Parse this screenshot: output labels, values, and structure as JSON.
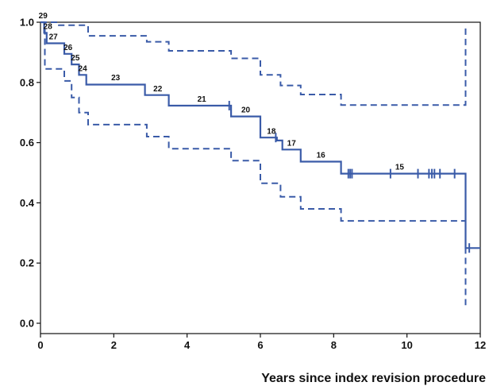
{
  "chart_data": {
    "type": "line",
    "title": "",
    "xlabel": "Years since index revision procedure",
    "ylabel": "",
    "xlim": [
      0,
      12
    ],
    "ylim": [
      0,
      1
    ],
    "x_ticks": [
      0,
      2,
      4,
      6,
      8,
      10,
      12
    ],
    "y_ticks": [
      0.0,
      0.2,
      0.4,
      0.6,
      0.8,
      1.0
    ],
    "x_tick_labels": [
      "0",
      "2",
      "4",
      "6",
      "8",
      "10",
      "12"
    ],
    "y_tick_labels": [
      "0.0",
      "0.2",
      "0.4",
      "0.6",
      "0.8",
      "1.0"
    ],
    "grid": false,
    "color": "#3a5ba8",
    "series": [
      {
        "role": "estimate",
        "line_style": "solid",
        "steps": [
          [
            0,
            1.0
          ],
          [
            0.1,
            0.965
          ],
          [
            0.17,
            0.93
          ],
          [
            0.65,
            0.895
          ],
          [
            0.85,
            0.86
          ],
          [
            1.05,
            0.825
          ],
          [
            1.25,
            0.793
          ],
          [
            2.85,
            0.758
          ],
          [
            3.5,
            0.723
          ],
          [
            5.2,
            0.687
          ],
          [
            6.0,
            0.617
          ],
          [
            6.45,
            0.607
          ],
          [
            6.6,
            0.577
          ],
          [
            7.1,
            0.537
          ],
          [
            8.2,
            0.497
          ],
          [
            11.6,
            0.25
          ],
          [
            12.0,
            0.25
          ]
        ],
        "censor_x": [
          5.15,
          6.42,
          8.4,
          8.45,
          8.5,
          9.55,
          10.3,
          10.6,
          10.68,
          10.75,
          10.9,
          11.3,
          11.7
        ]
      },
      {
        "role": "upper confidence limit",
        "line_style": "dashed",
        "steps": [
          [
            0,
            1.0
          ],
          [
            0.5,
            0.99
          ],
          [
            1.3,
            0.955
          ],
          [
            2.9,
            0.935
          ],
          [
            3.5,
            0.905
          ],
          [
            5.2,
            0.88
          ],
          [
            6.0,
            0.825
          ],
          [
            6.55,
            0.79
          ],
          [
            7.1,
            0.76
          ],
          [
            8.2,
            0.725
          ],
          [
            11.6,
            0.725
          ],
          [
            11.6,
            0.99
          ]
        ]
      },
      {
        "role": "lower confidence limit",
        "line_style": "dashed",
        "steps": [
          [
            0,
            1.0
          ],
          [
            0.12,
            0.845
          ],
          [
            0.65,
            0.805
          ],
          [
            0.85,
            0.75
          ],
          [
            1.05,
            0.7
          ],
          [
            1.3,
            0.66
          ],
          [
            2.9,
            0.62
          ],
          [
            3.5,
            0.58
          ],
          [
            5.2,
            0.54
          ],
          [
            6.0,
            0.465
          ],
          [
            6.55,
            0.42
          ],
          [
            7.1,
            0.38
          ],
          [
            8.2,
            0.34
          ],
          [
            11.6,
            0.34
          ],
          [
            11.6,
            0.06
          ]
        ]
      }
    ],
    "at_risk_labels": [
      {
        "text": "29",
        "x": 0.07,
        "y": 1.005
      },
      {
        "text": "28",
        "x": 0.2,
        "y": 0.97
      },
      {
        "text": "27",
        "x": 0.35,
        "y": 0.935
      },
      {
        "text": "26",
        "x": 0.75,
        "y": 0.9
      },
      {
        "text": "25",
        "x": 0.95,
        "y": 0.865
      },
      {
        "text": "24",
        "x": 1.15,
        "y": 0.83
      },
      {
        "text": "23",
        "x": 2.05,
        "y": 0.8
      },
      {
        "text": "22",
        "x": 3.2,
        "y": 0.763
      },
      {
        "text": "21",
        "x": 4.4,
        "y": 0.728
      },
      {
        "text": "20",
        "x": 5.6,
        "y": 0.692
      },
      {
        "text": "18",
        "x": 6.3,
        "y": 0.622
      },
      {
        "text": "17",
        "x": 6.85,
        "y": 0.582
      },
      {
        "text": "16",
        "x": 7.65,
        "y": 0.542
      },
      {
        "text": "15",
        "x": 9.8,
        "y": 0.502
      }
    ]
  }
}
